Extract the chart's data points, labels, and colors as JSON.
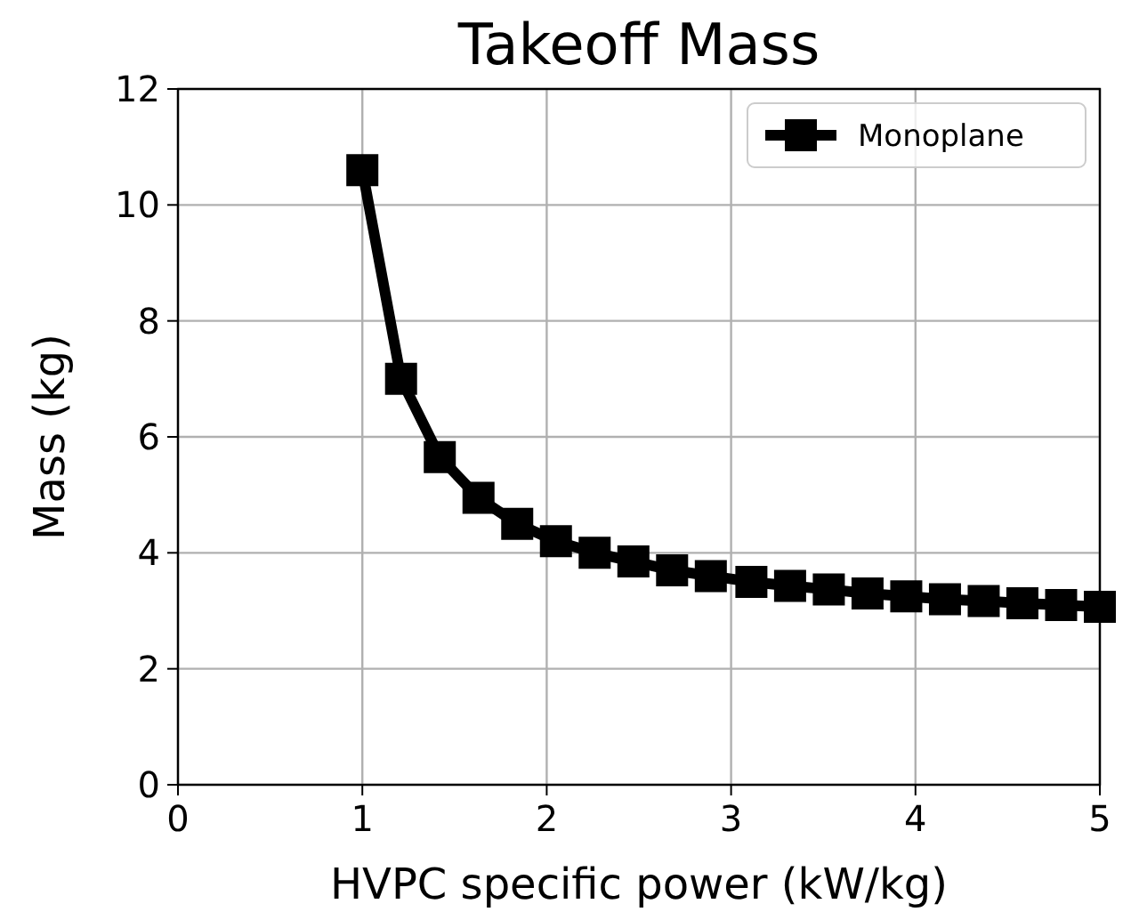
{
  "chart_data": {
    "type": "line",
    "title": "Takeoff Mass",
    "xlabel": "HVPC specific power (kW/kg)",
    "ylabel": "Mass (kg)",
    "x": [
      1,
      1.21,
      1.42,
      1.63,
      1.84,
      2.05,
      2.26,
      2.47,
      2.68,
      2.89,
      3.11,
      3.32,
      3.53,
      3.74,
      3.95,
      4.16,
      4.37,
      4.58,
      4.79,
      5
    ],
    "series": [
      {
        "name": "Monoplane",
        "color": "#000000",
        "values": [
          10.6,
          7.0,
          5.65,
          4.95,
          4.5,
          4.2,
          4.0,
          3.85,
          3.7,
          3.6,
          3.5,
          3.43,
          3.37,
          3.3,
          3.25,
          3.2,
          3.17,
          3.13,
          3.1,
          3.07
        ]
      }
    ],
    "xlim": [
      0,
      5
    ],
    "xticks": [
      0,
      1,
      2,
      3,
      4,
      5
    ],
    "ylim": [
      0,
      12
    ],
    "yticks": [
      0,
      2,
      4,
      6,
      8,
      10,
      12
    ],
    "grid": true,
    "legend": "top right",
    "marker": "square",
    "line_style": "solid"
  }
}
